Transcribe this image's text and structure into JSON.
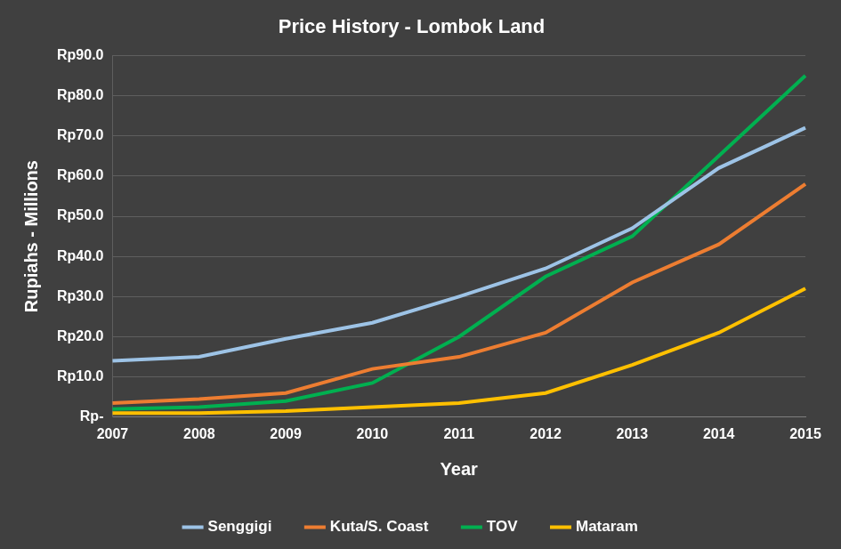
{
  "chart_data": {
    "type": "line",
    "title": "Price History - Lombok Land",
    "x_label": "Year",
    "y_label": "Rupiahs - Millions",
    "categories": [
      "2007",
      "2008",
      "2009",
      "2010",
      "2011",
      "2012",
      "2013",
      "2014",
      "2015"
    ],
    "series": [
      {
        "name": "Senggigi",
        "color": "#9dc3e6",
        "values": [
          14,
          15,
          19.5,
          23.5,
          30,
          37,
          47,
          62,
          72
        ]
      },
      {
        "name": "Kuta/S. Coast",
        "color": "#ed7d31",
        "values": [
          3.5,
          4.5,
          6,
          12,
          15,
          21,
          33.5,
          43,
          58
        ]
      },
      {
        "name": "TOV",
        "color": "#00b050",
        "values": [
          2,
          2.5,
          4,
          8.5,
          20,
          35,
          45,
          65,
          85
        ]
      },
      {
        "name": "Mataram",
        "color": "#ffc000",
        "values": [
          1,
          1,
          1.5,
          2.5,
          3.5,
          6,
          13,
          21,
          32
        ]
      }
    ],
    "ylim": [
      0,
      90
    ],
    "yticks": [
      {
        "value": 0,
        "label": "Rp-"
      },
      {
        "value": 10,
        "label": "Rp10.0"
      },
      {
        "value": 20,
        "label": "Rp20.0"
      },
      {
        "value": 30,
        "label": "Rp30.0"
      },
      {
        "value": 40,
        "label": "Rp40.0"
      },
      {
        "value": 50,
        "label": "Rp50.0"
      },
      {
        "value": 60,
        "label": "Rp60.0"
      },
      {
        "value": 70,
        "label": "Rp70.0"
      },
      {
        "value": 80,
        "label": "Rp80.0"
      },
      {
        "value": 90,
        "label": "Rp90.0"
      }
    ],
    "grid": true,
    "legend": "bottom"
  }
}
